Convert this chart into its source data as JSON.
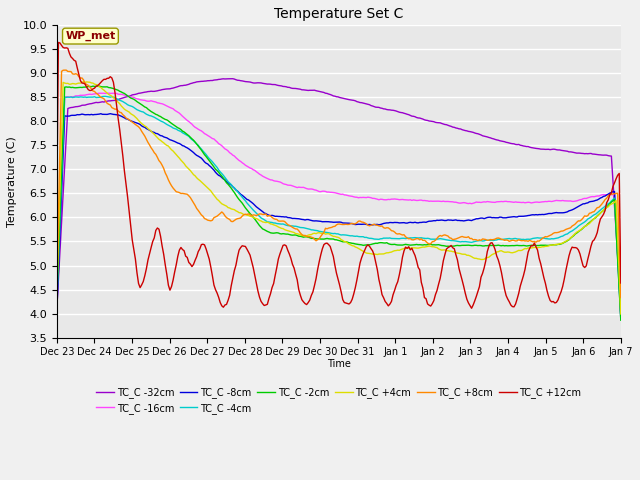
{
  "title": "Temperature Set C",
  "xlabel": "Time",
  "ylabel": "Temperature (C)",
  "ylim": [
    3.5,
    10.0
  ],
  "background_color": "#f0f0f0",
  "plot_bg_color": "#e8e8e8",
  "grid_color": "#ffffff",
  "wp_met_label": "WP_met",
  "wp_met_color": "#8B0000",
  "wp_met_bg": "#ffffcc",
  "series": [
    {
      "label": "TC_C -32cm",
      "color": "#9900cc"
    },
    {
      "label": "TC_C -16cm",
      "color": "#ff44ff"
    },
    {
      "label": "TC_C -8cm",
      "color": "#0000dd"
    },
    {
      "label": "TC_C -4cm",
      "color": "#00cccc"
    },
    {
      "label": "TC_C -2cm",
      "color": "#00cc00"
    },
    {
      "label": "TC_C +4cm",
      "color": "#dddd00"
    },
    {
      "label": "TC_C +8cm",
      "color": "#ff8800"
    },
    {
      "label": "TC_C +12cm",
      "color": "#cc0000"
    }
  ],
  "tick_labels": [
    "Dec 23",
    "Dec 24",
    "Dec 25",
    "Dec 26",
    "Dec 27",
    "Dec 28",
    "Dec 29",
    "Dec 30",
    "Dec 31",
    "Jan 1",
    "Jan 2",
    "Jan 3",
    "Jan 4",
    "Jan 5",
    "Jan 6",
    "Jan 7"
  ]
}
